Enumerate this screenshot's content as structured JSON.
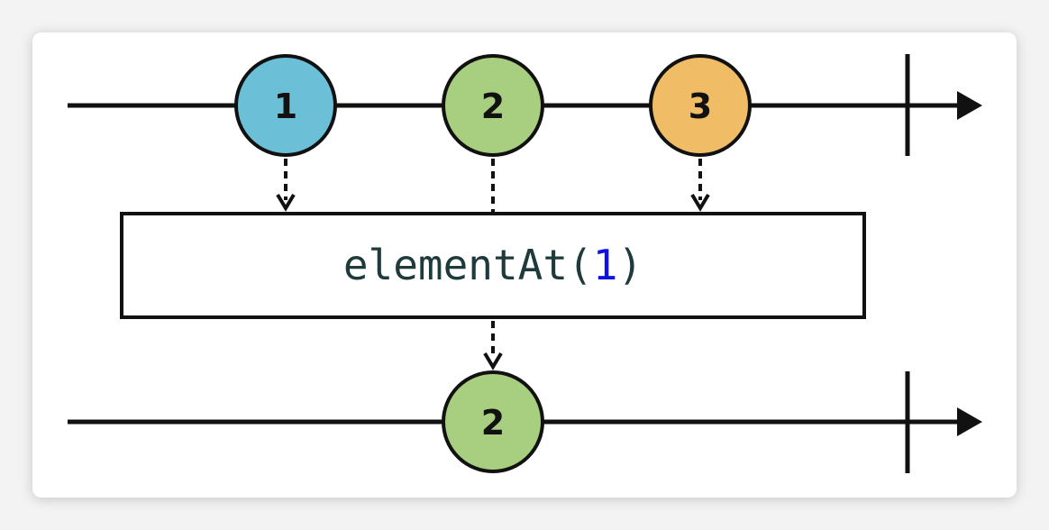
{
  "colors": {
    "line": "#111111",
    "marble_1": "#6bbfd6",
    "marble_2": "#a8cf7f",
    "marble_3": "#f0bd66",
    "operator_arg": "#1010e0"
  },
  "input_timeline": {
    "marbles": [
      {
        "label": "1",
        "color_key": "marble_1"
      },
      {
        "label": "2",
        "color_key": "marble_2"
      },
      {
        "label": "3",
        "color_key": "marble_3"
      }
    ]
  },
  "operator": {
    "name": "elementAt(",
    "argument": "1",
    "close": ")"
  },
  "output_timeline": {
    "marbles": [
      {
        "label": "2",
        "color_key": "marble_2"
      }
    ]
  }
}
